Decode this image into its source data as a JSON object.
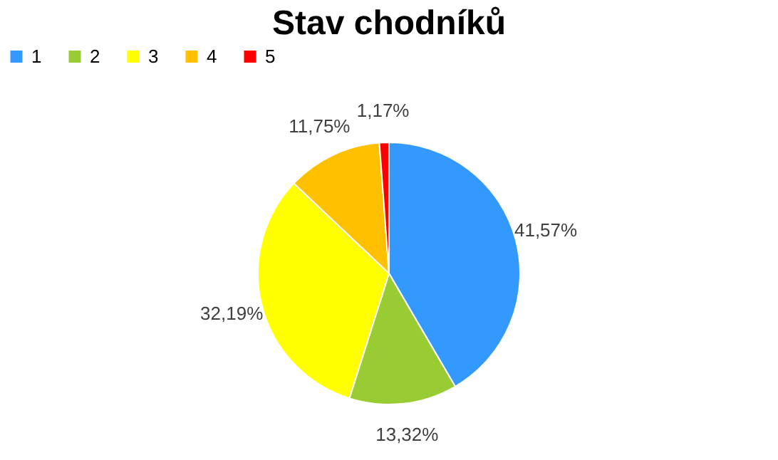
{
  "chart_data": {
    "type": "pie",
    "title": "Stav chodníků",
    "categories": [
      "1",
      "2",
      "3",
      "4",
      "5"
    ],
    "values": [
      41.57,
      13.32,
      32.19,
      11.75,
      1.17
    ],
    "colors": [
      "#3399ff",
      "#99cc33",
      "#ffff00",
      "#ffc000",
      "#ff0000"
    ],
    "value_labels": [
      "41,57%",
      "13,32%",
      "32,19%",
      "11,75%",
      "1,17%"
    ],
    "legend": "top"
  }
}
